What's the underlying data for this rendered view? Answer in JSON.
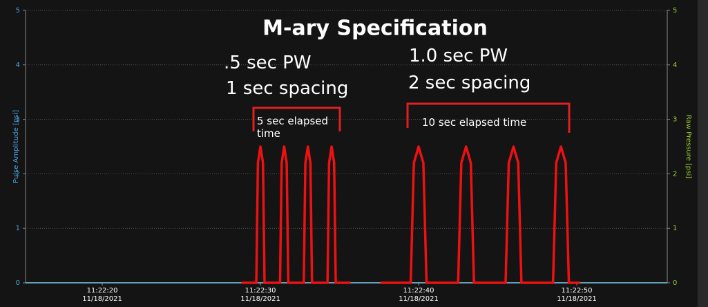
{
  "chart_data": {
    "type": "line",
    "title": "M-ary Specification",
    "ylabel": "Pulse Amplitude [psi]",
    "y2label": "Raw Pressure [psi]",
    "annotations": [
      ".5 sec PW",
      "1 sec spacing",
      "1.0 sec PW",
      "2 sec spacing",
      "5 sec elapsed time",
      "10 sec elapsed time"
    ],
    "xlim": [
      "2021-11-18T11:22:15.15",
      "2021-11-18T11:22:55.72"
    ],
    "xticks": [
      {
        "value": "2021-11-18T11:22:20",
        "label": "11:22:20\n11/18/2021"
      },
      {
        "value": "2021-11-18T11:22:30",
        "label": "11:22:30\n11/18/2021"
      },
      {
        "value": "2021-11-18T11:22:40",
        "label": "11:22:40\n11/18/2021"
      },
      {
        "value": "2021-11-18T11:22:50",
        "label": "11:22:50\n11/18/2021"
      }
    ],
    "ylim": [
      0,
      5
    ],
    "yticks": [
      0,
      1,
      2,
      3,
      4,
      5
    ],
    "y2lim": [
      0,
      5
    ],
    "y2ticks": [
      0,
      1,
      2,
      3,
      4,
      5
    ],
    "grid": true,
    "series": [
      {
        "color": "#7fd0ee",
        "x": [
          "2021-11-18T11:22:15.15",
          "2021-11-18T11:22:55.72"
        ],
        "values": [
          0,
          0
        ]
      },
      {
        "color": "#ee1111",
        "x": [
          "2021-11-18T11:22:28.8",
          "2021-11-18T11:22:29.74",
          "2021-11-18T11:22:29.84",
          "2021-11-18T11:22:30.0",
          "2021-11-18T11:22:30.16",
          "2021-11-18T11:22:30.26",
          "2021-11-18T11:22:31.24",
          "2021-11-18T11:22:31.34",
          "2021-11-18T11:22:31.5",
          "2021-11-18T11:22:31.66",
          "2021-11-18T11:22:31.76",
          "2021-11-18T11:22:32.74",
          "2021-11-18T11:22:32.84",
          "2021-11-18T11:22:33.0",
          "2021-11-18T11:22:33.16",
          "2021-11-18T11:22:33.26",
          "2021-11-18T11:22:34.24",
          "2021-11-18T11:22:34.34",
          "2021-11-18T11:22:34.5",
          "2021-11-18T11:22:34.66",
          "2021-11-18T11:22:34.76",
          "2021-11-18T11:22:35.7",
          "2021-11-18T11:22:36.6",
          "2021-11-18T11:22:37.6",
          "2021-11-18T11:22:39.5",
          "2021-11-18T11:22:39.7",
          "2021-11-18T11:22:40.0",
          "2021-11-18T11:22:40.3",
          "2021-11-18T11:22:40.5",
          "2021-11-18T11:22:42.5",
          "2021-11-18T11:22:42.7",
          "2021-11-18T11:22:43.0",
          "2021-11-18T11:22:43.3",
          "2021-11-18T11:22:43.5",
          "2021-11-18T11:22:45.5",
          "2021-11-18T11:22:45.7",
          "2021-11-18T11:22:46.0",
          "2021-11-18T11:22:46.3",
          "2021-11-18T11:22:46.5",
          "2021-11-18T11:22:48.5",
          "2021-11-18T11:22:48.7",
          "2021-11-18T11:22:49.0",
          "2021-11-18T11:22:49.3",
          "2021-11-18T11:22:49.5",
          "2021-11-18T11:22:50.2"
        ],
        "values": [
          0,
          0,
          2.2,
          2.5,
          2.2,
          0,
          0,
          2.2,
          2.5,
          2.2,
          0,
          0,
          2.2,
          2.5,
          2.2,
          0,
          0,
          2.2,
          2.5,
          2.2,
          0,
          0,
          null,
          0,
          0,
          2.2,
          2.5,
          2.2,
          0,
          0,
          2.2,
          2.5,
          2.2,
          0,
          0,
          2.2,
          2.5,
          2.2,
          0,
          0,
          2.2,
          2.5,
          2.2,
          0,
          0
        ]
      }
    ]
  }
}
